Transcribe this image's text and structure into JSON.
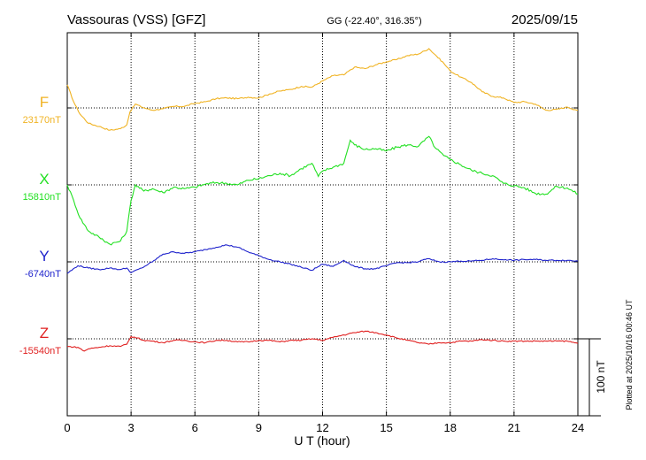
{
  "header": {
    "station": "Vassouras (VSS)  [GFZ]",
    "coords": "GG (-22.40°, 316.35°)",
    "date": "2025/09/15"
  },
  "side_note": "Plotted at 2025/10/16 00:46 UT",
  "scale_label": "100 nT",
  "chart_data": {
    "type": "line",
    "xlabel": "U T (hour)",
    "xlim": [
      0,
      24
    ],
    "xticks": [
      "0",
      "3",
      "6",
      "9",
      "12",
      "15",
      "18",
      "21",
      "24"
    ],
    "scale_bar_nT": 100,
    "grid": true,
    "series": [
      {
        "name": "F",
        "baseline_label": "23170nT",
        "baseline": 23170,
        "color": "#f0b323",
        "x": [
          0,
          0.3,
          0.6,
          1,
          1.5,
          2,
          2.5,
          2.8,
          2.95,
          3.2,
          3.6,
          4,
          4.5,
          5,
          5.5,
          6,
          6.5,
          7,
          7.5,
          8,
          8.5,
          9,
          9.5,
          10,
          10.5,
          11,
          11.5,
          12,
          12.5,
          13,
          13.5,
          14,
          14.5,
          15,
          15.5,
          16,
          16.5,
          17,
          17.3,
          17.7,
          18,
          18.5,
          19,
          19.5,
          20,
          20.5,
          21,
          21.5,
          22,
          22.5,
          23,
          23.5,
          24
        ],
        "values": [
          23200,
          23178,
          23162,
          23150,
          23146,
          23141,
          23143,
          23148,
          23165,
          23175,
          23170,
          23167,
          23169,
          23172,
          23172,
          23176,
          23178,
          23182,
          23183,
          23182,
          23184,
          23183,
          23188,
          23192,
          23194,
          23198,
          23197,
          23205,
          23212,
          23213,
          23223,
          23221,
          23226,
          23230,
          23233,
          23238,
          23240,
          23247,
          23239,
          23228,
          23218,
          23210,
          23203,
          23191,
          23185,
          23183,
          23177,
          23178,
          23175,
          23167,
          23168,
          23171,
          23167
        ]
      },
      {
        "name": "X",
        "baseline_label": "15810nT",
        "baseline": 15810,
        "color": "#22e022",
        "x": [
          0,
          0.3,
          0.6,
          1,
          1.5,
          2,
          2.5,
          2.8,
          3.0,
          3.2,
          3.6,
          4,
          4.5,
          5,
          5.5,
          6,
          6.5,
          7,
          7.5,
          8,
          8.5,
          9,
          9.5,
          10,
          10.5,
          11,
          11.5,
          11.8,
          12,
          12.5,
          13,
          13.3,
          13.5,
          14,
          14.5,
          15,
          15.5,
          16,
          16.5,
          17,
          17.3,
          17.7,
          18,
          18.5,
          19,
          19.5,
          20,
          20.5,
          21,
          21.5,
          22,
          22.5,
          23,
          23.5,
          24
        ],
        "values": [
          15810,
          15790,
          15767,
          15750,
          15742,
          15733,
          15737,
          15750,
          15790,
          15810,
          15802,
          15805,
          15800,
          15807,
          15805,
          15807,
          15811,
          15813,
          15812,
          15810,
          15816,
          15818,
          15822,
          15825,
          15822,
          15831,
          15838,
          15821,
          15828,
          15833,
          15838,
          15868,
          15862,
          15856,
          15857,
          15854,
          15859,
          15862,
          15860,
          15873,
          15858,
          15848,
          15843,
          15836,
          15829,
          15825,
          15822,
          15812,
          15809,
          15806,
          15799,
          15798,
          15808,
          15806,
          15798
        ]
      },
      {
        "name": "Y",
        "baseline_label": "-6740nT",
        "baseline": -6740,
        "color": "#1e22cc",
        "x": [
          0,
          0.5,
          1,
          1.5,
          2,
          2.5,
          2.8,
          3,
          3.5,
          4,
          4.5,
          5,
          5.5,
          6,
          6.5,
          7,
          7.5,
          8,
          8.5,
          9,
          9.5,
          10,
          10.5,
          11,
          11.5,
          12,
          12.5,
          13,
          13.5,
          14,
          14.5,
          15,
          15.5,
          16,
          16.5,
          16.9,
          17.1,
          17.5,
          18,
          18.5,
          19,
          19.5,
          20,
          20.3,
          20.6,
          21,
          21.5,
          22,
          22.5,
          23,
          23.5,
          24
        ],
        "values": [
          -6755,
          -6745,
          -6748,
          -6750,
          -6748,
          -6750,
          -6748,
          -6754,
          -6748,
          -6740,
          -6730,
          -6727,
          -6729,
          -6727,
          -6724,
          -6721,
          -6718,
          -6721,
          -6727,
          -6732,
          -6737,
          -6740,
          -6743,
          -6747,
          -6751,
          -6743,
          -6746,
          -6738,
          -6746,
          -6749,
          -6749,
          -6745,
          -6741,
          -6741,
          -6740,
          -6736,
          -6737,
          -6740,
          -6740,
          -6739,
          -6739,
          -6738,
          -6736,
          -6737,
          -6737,
          -6738,
          -6737,
          -6737,
          -6738,
          -6738,
          -6738,
          -6739
        ]
      },
      {
        "name": "Z",
        "baseline_label": "-15540nT",
        "baseline": -15540,
        "color": "#e02020",
        "x": [
          0,
          0.5,
          0.8,
          1,
          1.5,
          2,
          2.5,
          2.8,
          3,
          3.3,
          3.6,
          4,
          4.5,
          5,
          5.5,
          6,
          6.5,
          7,
          7.5,
          8,
          8.5,
          9,
          9.5,
          10,
          10.5,
          11,
          11.5,
          12,
          12.5,
          13,
          13.5,
          14,
          14.5,
          15,
          15.5,
          16,
          16.5,
          17,
          17.5,
          18,
          18.5,
          19,
          19.5,
          20,
          20.5,
          21,
          21.5,
          22,
          22.5,
          23,
          23.5,
          24
        ],
        "values": [
          -15550,
          -15551,
          -15556,
          -15553,
          -15551,
          -15549,
          -15550,
          -15547,
          -15537,
          -15539,
          -15542,
          -15543,
          -15545,
          -15542,
          -15542,
          -15544,
          -15545,
          -15542,
          -15542,
          -15544,
          -15544,
          -15542,
          -15542,
          -15544,
          -15542,
          -15542,
          -15540,
          -15542,
          -15538,
          -15535,
          -15532,
          -15530,
          -15532,
          -15535,
          -15539,
          -15542,
          -15545,
          -15547,
          -15545,
          -15545,
          -15543,
          -15543,
          -15541,
          -15542,
          -15543,
          -15543,
          -15543,
          -15543,
          -15543,
          -15543,
          -15543,
          -15546
        ]
      }
    ]
  }
}
